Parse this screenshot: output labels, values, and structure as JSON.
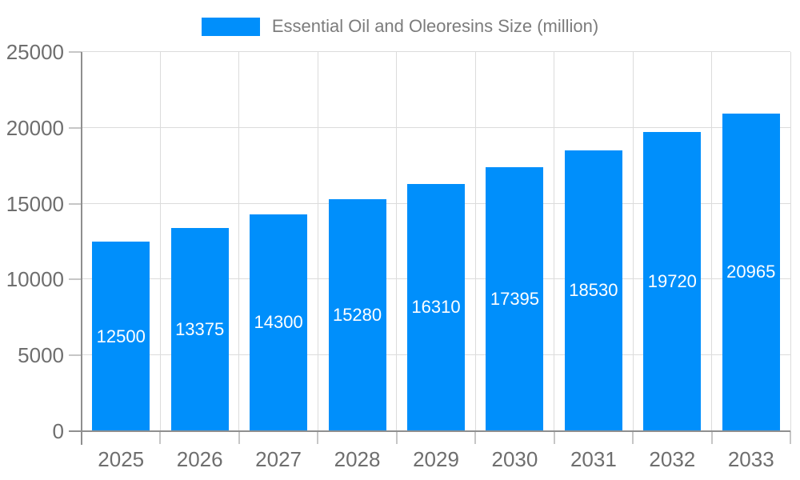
{
  "chart_data": {
    "type": "bar",
    "title": "Essential Oil and Oleoresins Size (million)",
    "categories": [
      "2025",
      "2026",
      "2027",
      "2028",
      "2029",
      "2030",
      "2031",
      "2032",
      "2033"
    ],
    "values": [
      12500,
      13375,
      14300,
      15280,
      16310,
      17395,
      18530,
      19720,
      20965
    ],
    "xlabel": "",
    "ylabel": "",
    "ylim": [
      0,
      25000
    ],
    "yticks": [
      0,
      5000,
      10000,
      15000,
      20000,
      25000
    ],
    "grid": "both",
    "legend_position": "top",
    "bar_color": "#008FFB",
    "value_label_color": "#ffffff",
    "axis_label_color": "#6e6e6e",
    "legend_text_color": "#7c7c7c",
    "gridline_color": "#dcdcdc",
    "axis_line_color": "#8f8f8f"
  }
}
